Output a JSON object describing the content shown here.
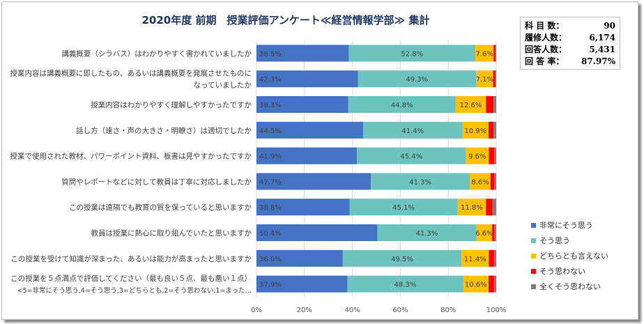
{
  "title": "2020年度 前期　授業評価アンケート≪経営情報学部≫ 集計",
  "info": [
    {
      "label": "科 目 数：",
      "value": "90"
    },
    {
      "label": "履修人数：",
      "value": "6,174"
    },
    {
      "label": "回答人数：",
      "value": "5,431"
    },
    {
      "label": "回 答 率：",
      "value": "87.97%"
    }
  ],
  "chart_data": {
    "type": "bar",
    "orientation": "horizontal",
    "stacked": "percent",
    "categories": [
      [
        "講義概要（シラバス）はわかりやすく書かれていましたか"
      ],
      [
        "授業内容は講義概要に即したもの、あるいは講義概要を発展させたものに",
        "なっていましたか"
      ],
      [
        "授業内容はわかりやすく理解しやすかったですか"
      ],
      [
        "話し方（速さ・声の大きさ・明瞭さ）は適切でしたか"
      ],
      [
        "授業で使用された教材、パワーポイント資料、板書は見やすかったですか"
      ],
      [
        "質問やレポートなどに対して教員は丁寧に対応しましたか"
      ],
      [
        "この授業は遠隔でも教育の質を保っていると思いますか"
      ],
      [
        "教員は授業に熱心に取り組んでいたと思いますか"
      ],
      [
        "この授業を受けて知識が深まった、あるいは能力が高まったと思いますか"
      ],
      [
        "この授業を５点満点で評価してください（最も良い５点、最も悪い１点）",
        "<5=非常にそう思う,4=そう思う,3=どちらとも,2=そう思わない,1=まった…"
      ]
    ],
    "series": [
      {
        "name": "非常にそう思う",
        "color": "#4472c4",
        "values": [
          38.5,
          42.3,
          38.3,
          44.5,
          41.9,
          47.7,
          38.8,
          50.4,
          36.0,
          37.9
        ],
        "labeled": true
      },
      {
        "name": "そう思う",
        "color": "#6cc3bf",
        "values": [
          52.8,
          49.3,
          44.8,
          41.4,
          45.4,
          41.3,
          45.1,
          41.3,
          49.5,
          48.3
        ],
        "labeled": true
      },
      {
        "name": "どちらとも言えない",
        "color": "#ffc000",
        "values": [
          7.6,
          7.1,
          12.6,
          10.9,
          9.6,
          8.6,
          11.8,
          6.6,
          11.4,
          10.6
        ],
        "labeled": true
      },
      {
        "name": "そう思わない",
        "color": "#ff0000",
        "values": [
          0.7,
          0.9,
          3.2,
          2.1,
          2.3,
          1.6,
          2.7,
          0.9,
          2.2,
          2.3
        ],
        "labeled": false
      },
      {
        "name": "全くそう思わない",
        "color": "#7f7f7f",
        "values": [
          0.4,
          0.4,
          1.1,
          1.1,
          0.8,
          0.8,
          1.6,
          0.8,
          0.9,
          0.9
        ],
        "labeled": false
      }
    ],
    "xlim": [
      0,
      100
    ],
    "xticks": [
      "0%",
      "20%",
      "40%",
      "60%",
      "80%",
      "100%"
    ],
    "grid": true,
    "legend": "right"
  }
}
